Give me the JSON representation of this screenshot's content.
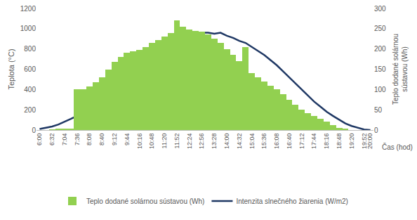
{
  "chart_data": {
    "type": "bar",
    "x_label": "Čas (hod)",
    "y_label": "Teplota (°C)",
    "y2_label": "Teplo dodané solárnou sústavou (Wh)",
    "categories": [
      "6:00",
      null,
      "6:32",
      null,
      "7:04",
      null,
      "7:36",
      null,
      "8:08",
      null,
      "8:40",
      null,
      "9:12",
      null,
      "9:44",
      null,
      "10:16",
      null,
      "10:48",
      null,
      "11:20",
      null,
      "11:52",
      null,
      "12:24",
      null,
      "12:56",
      null,
      "13:28",
      null,
      "14:00",
      null,
      "14:32",
      null,
      "15:04",
      null,
      "15:36",
      null,
      "16:08",
      null,
      "16:40",
      null,
      "17:12",
      null,
      "17:44",
      null,
      "18:16",
      null,
      "18:48",
      null,
      "19:20",
      null,
      "19:52",
      "20:00"
    ],
    "series": [
      {
        "name": "Teplo dodané solárnou sústavou (Wh)",
        "type": "bar",
        "axis": "y2",
        "color": "#92d050",
        "values": [
          0,
          0,
          1,
          2,
          3,
          4,
          100,
          100,
          108,
          118,
          130,
          150,
          168,
          180,
          190,
          195,
          198,
          205,
          215,
          222,
          230,
          240,
          270,
          255,
          248,
          245,
          243,
          235,
          225,
          215,
          200,
          185,
          170,
          205,
          140,
          130,
          120,
          110,
          100,
          88,
          75,
          62,
          50,
          42,
          35,
          28,
          20,
          12,
          6,
          2,
          0,
          0,
          0,
          0
        ]
      },
      {
        "name": "Intenzita slnečného žiarenia (W/m2)",
        "type": "line",
        "color": "#1f3864",
        "values": [
          10,
          20,
          35,
          55,
          80,
          110,
          140,
          185,
          230,
          280,
          330,
          375,
          420,
          470,
          520,
          570,
          630,
          680,
          730,
          780,
          830,
          870,
          900,
          925,
          940,
          950,
          960,
          960,
          950,
          960,
          930,
          910,
          880,
          860,
          820,
          780,
          740,
          690,
          640,
          580,
          520,
          460,
          400,
          340,
          280,
          230,
          180,
          140,
          100,
          65,
          40,
          20,
          5,
          0
        ]
      }
    ],
    "ylim": [
      0,
      1200
    ],
    "yticks": [
      0,
      200,
      400,
      600,
      800,
      1000,
      1200
    ],
    "y2lim": [
      0,
      300
    ],
    "y2ticks": [
      0,
      50,
      100,
      150,
      200,
      250,
      300
    ],
    "grid": false,
    "legend": "bottom"
  }
}
